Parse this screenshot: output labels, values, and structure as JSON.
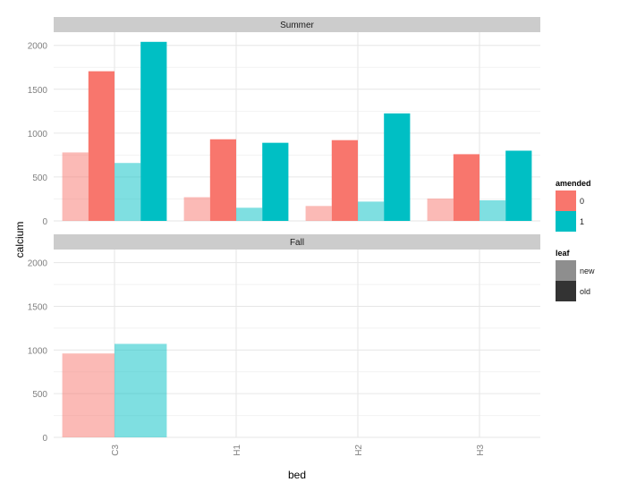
{
  "chart_data": {
    "type": "bar",
    "xlabel": "bed",
    "ylabel": "calcium",
    "categories": [
      "C3",
      "H1",
      "H2",
      "H3"
    ],
    "yticks": [
      0,
      500,
      1000,
      1500,
      2000
    ],
    "ylim": [
      0,
      2150
    ],
    "grid": true,
    "panels": [
      {
        "strip": "Summer",
        "series": [
          {
            "amended": "0",
            "leaf": "new",
            "values": [
              780,
              270,
              170,
              255
            ]
          },
          {
            "amended": "0",
            "leaf": "old",
            "values": [
              1705,
              930,
              920,
              760
            ]
          },
          {
            "amended": "1",
            "leaf": "new",
            "values": [
              660,
              150,
              220,
              235
            ]
          },
          {
            "amended": "1",
            "leaf": "old",
            "values": [
              2040,
              890,
              1225,
              800
            ]
          }
        ]
      },
      {
        "strip": "Fall",
        "series": [
          {
            "amended": "0",
            "leaf": "new",
            "values": [
              960,
              null,
              null,
              null
            ]
          },
          {
            "amended": "1",
            "leaf": "new",
            "values": [
              1070,
              null,
              null,
              null
            ]
          }
        ]
      }
    ],
    "legend": {
      "placement": "right",
      "amended": {
        "title": "amended",
        "levels": [
          "0",
          "1"
        ]
      },
      "leaf": {
        "title": "leaf",
        "levels": [
          "new",
          "old"
        ]
      }
    }
  },
  "colors": {
    "amended_0": "#f8766d",
    "amended_1": "#00bfc4",
    "leaf_new_key": "#8e8e8e",
    "leaf_old_key": "#333333",
    "strip": "#cccccc",
    "grid": "#e6e6e6"
  }
}
